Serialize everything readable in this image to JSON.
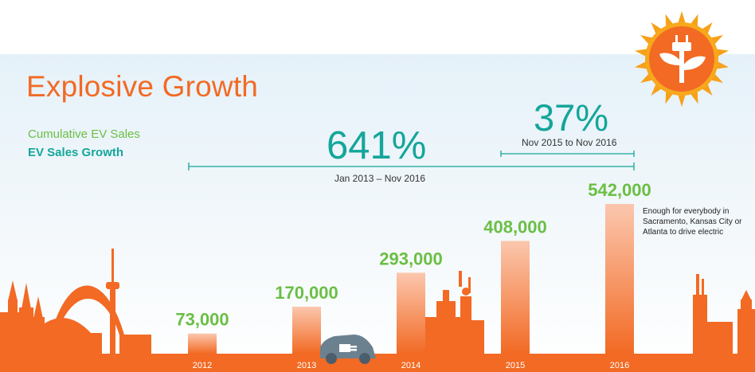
{
  "title": "Explosive Growth",
  "legend": {
    "cumulative": "Cumulative EV Sales",
    "growth": "EV Sales Growth"
  },
  "growth_callouts": [
    {
      "value": "641%",
      "period": "Jan 2013 – Nov 2016"
    },
    {
      "value": "37%",
      "period": "Nov 2015 to Nov 2016"
    }
  ],
  "annotation": "Enough for everybody in Sacramento, Kansas City or Atlanta to drive electric",
  "colors": {
    "title": "#f26a24",
    "bar_top": "#fbc7ae",
    "bar_bottom": "#f26a24",
    "value_label": "#6abf44",
    "growth": "#14a69a",
    "skyline": "#f26a24"
  },
  "icons": [
    "plug-sun-icon",
    "electric-car-icon"
  ],
  "chart_data": {
    "type": "bar",
    "categories": [
      "2012",
      "2013",
      "2014",
      "2015",
      "2016"
    ],
    "values": [
      73000,
      170000,
      293000,
      408000,
      542000
    ],
    "value_labels": [
      "73,000",
      "170,000",
      "293,000",
      "408,000",
      "542,000"
    ],
    "title": "Explosive Growth",
    "xlabel": "",
    "ylabel": "",
    "ylim": [
      0,
      542000
    ],
    "grid": false
  }
}
